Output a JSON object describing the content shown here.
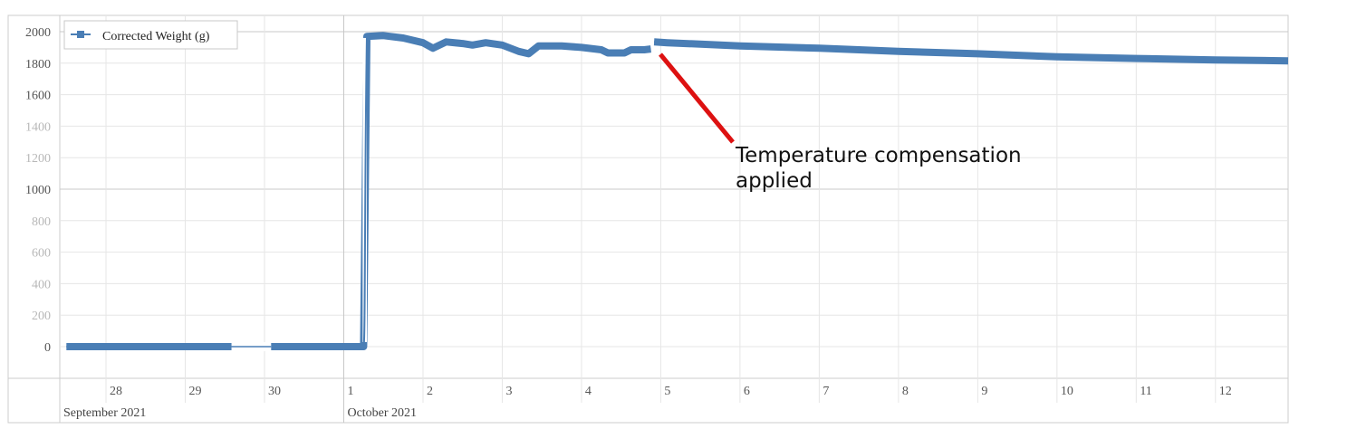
{
  "chart_data": {
    "type": "line",
    "title": "",
    "xlabel": "",
    "ylabel": "",
    "ylim": [
      0,
      2000
    ],
    "yticks": [
      0,
      200,
      400,
      600,
      800,
      1000,
      1200,
      1400,
      1600,
      1800,
      2000
    ],
    "xlim": [
      "2021-09-27T10:00",
      "2021-10-12T22:00"
    ],
    "xticks": [
      {
        "date": "2021-09-28",
        "label": "28"
      },
      {
        "date": "2021-09-29",
        "label": "29"
      },
      {
        "date": "2021-09-30",
        "label": "30"
      },
      {
        "date": "2021-10-01",
        "label": "1"
      },
      {
        "date": "2021-10-02",
        "label": "2"
      },
      {
        "date": "2021-10-03",
        "label": "3"
      },
      {
        "date": "2021-10-04",
        "label": "4"
      },
      {
        "date": "2021-10-05",
        "label": "5"
      },
      {
        "date": "2021-10-06",
        "label": "6"
      },
      {
        "date": "2021-10-07",
        "label": "7"
      },
      {
        "date": "2021-10-08",
        "label": "8"
      },
      {
        "date": "2021-10-09",
        "label": "9"
      },
      {
        "date": "2021-10-10",
        "label": "10"
      },
      {
        "date": "2021-10-11",
        "label": "11"
      },
      {
        "date": "2021-10-12",
        "label": "12"
      }
    ],
    "months": [
      {
        "date": "2021-09-27T10:00",
        "label": "September 2021"
      },
      {
        "date": "2021-10-01",
        "label": "October 2021"
      }
    ],
    "grid": true,
    "legend_position": "top-left",
    "series": [
      {
        "name": "Corrected Weight (g)",
        "color": "#4a7eb5",
        "segments": [
          [
            [
              "2021-09-27T12:00",
              0
            ],
            [
              "2021-09-29T14:00",
              0
            ],
            [
              "2021-09-30T02:00",
              0
            ],
            [
              "2021-10-01T06:00",
              0
            ],
            [
              "2021-10-01T07:00",
              1970
            ],
            [
              "2021-10-01T12:00",
              1975
            ],
            [
              "2021-10-01T18:00",
              1960
            ],
            [
              "2021-10-02T00:00",
              1930
            ],
            [
              "2021-10-02T03:00",
              1895
            ],
            [
              "2021-10-02T07:00",
              1935
            ],
            [
              "2021-10-02T12:00",
              1925
            ],
            [
              "2021-10-02T15:00",
              1915
            ],
            [
              "2021-10-02T19:00",
              1930
            ],
            [
              "2021-10-03T00:00",
              1915
            ],
            [
              "2021-10-03T05:00",
              1875
            ],
            [
              "2021-10-03T08:00",
              1860
            ],
            [
              "2021-10-03T11:00",
              1910
            ],
            [
              "2021-10-03T18:00",
              1910
            ],
            [
              "2021-10-04T00:00",
              1900
            ],
            [
              "2021-10-04T06:00",
              1885
            ],
            [
              "2021-10-04T08:00",
              1865
            ],
            [
              "2021-10-04T13:00",
              1865
            ],
            [
              "2021-10-04T15:00",
              1885
            ],
            [
              "2021-10-04T19:00",
              1885
            ],
            [
              "2021-10-04T21:00",
              1890
            ]
          ],
          [
            [
              "2021-10-04T22:00",
              1935
            ],
            [
              "2021-10-05T02:00",
              1930
            ],
            [
              "2021-10-06T00:00",
              1910
            ],
            [
              "2021-10-07T00:00",
              1895
            ],
            [
              "2021-10-08T00:00",
              1875
            ],
            [
              "2021-10-09T00:00",
              1860
            ],
            [
              "2021-10-10T00:00",
              1840
            ],
            [
              "2021-10-11T00:00",
              1830
            ],
            [
              "2021-10-12T00:00",
              1820
            ],
            [
              "2021-10-12T22:00",
              1815
            ]
          ]
        ]
      }
    ],
    "annotations": [
      {
        "text_lines": [
          "Temperature compensation",
          "applied"
        ],
        "color": "#dd1111",
        "points_to": {
          "date": "2021-10-04T21:00",
          "value": 1870
        }
      }
    ]
  }
}
